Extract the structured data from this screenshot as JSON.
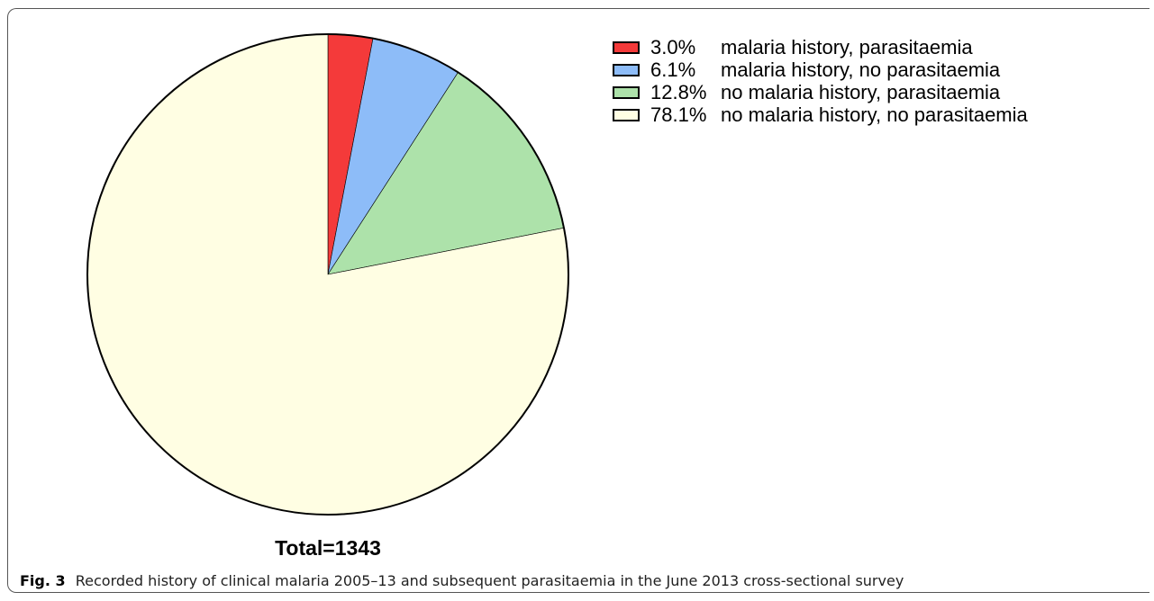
{
  "chart_data": {
    "type": "pie",
    "slices": [
      {
        "label": "malaria history, parasitaemia",
        "pct_text": "3.0%",
        "value": 3.0,
        "color": "#f43a3a"
      },
      {
        "label": "malaria history, no parasitaemia",
        "pct_text": "6.1%",
        "value": 6.1,
        "color": "#8dbcf8"
      },
      {
        "label": "no malaria history, parasitaemia",
        "pct_text": "12.8%",
        "value": 12.8,
        "color": "#ade2aa"
      },
      {
        "label": "no malaria history, no parasitaemia",
        "pct_text": "78.1%",
        "value": 78.1,
        "color": "#fffee3"
      }
    ],
    "start_angle": "12 o'clock",
    "direction": "clockwise",
    "legend_position": "top-right",
    "total_label": "Total=1343"
  },
  "caption": {
    "fig_label": "Fig. 3",
    "text": "Recorded history of clinical malaria 2005–13 and subsequent parasitaemia in the June 2013 cross-sectional survey"
  }
}
